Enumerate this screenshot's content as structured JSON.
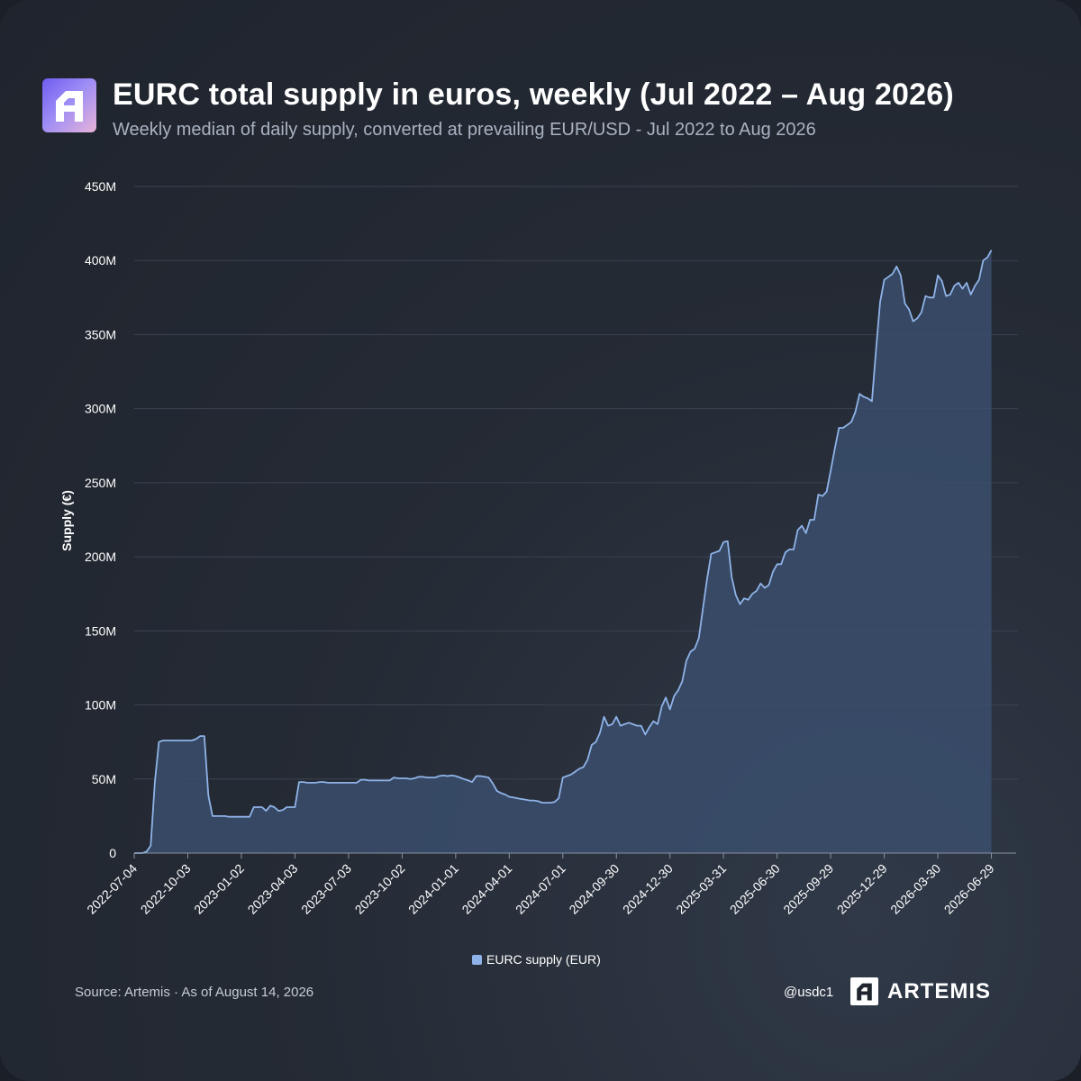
{
  "header": {
    "title": "EURC total supply in euros, weekly (Jul 2022 – Aug 2026)",
    "subtitle": "Weekly median of daily supply, converted at prevailing EUR/USD - Jul 2022 to Aug 2026",
    "logo_icon": "artemis-logo-icon"
  },
  "footer": {
    "source": "Source: Artemis · As of August 14, 2026",
    "handle": "@usdc1",
    "brand": "ARTEMIS",
    "brand_icon": "artemis-logo-icon"
  },
  "colors": {
    "line": "#8fb3e8",
    "area": "#3a4d6c",
    "grid": "#3b4250",
    "logo_gradient": [
      "#6f5cf0",
      "#e7b4d9"
    ]
  },
  "chart_data": {
    "type": "area",
    "title": "EURC total supply in euros, weekly (Jul 2022 – Aug 2026)",
    "subtitle": "Weekly median of daily supply, converted at prevailing EUR/USD - Jul 2022 to Aug 2026",
    "xlabel": "",
    "ylabel": "Supply (€)",
    "x_range": [
      "2022-07-04",
      "2026-08-10"
    ],
    "ylim": [
      0,
      450000000
    ],
    "y_ticks": [
      0,
      50000000,
      100000000,
      150000000,
      200000000,
      250000000,
      300000000,
      350000000,
      400000000,
      450000000
    ],
    "y_tick_labels": [
      "0",
      "50M",
      "100M",
      "150M",
      "200M",
      "250M",
      "300M",
      "350M",
      "400M",
      "450M"
    ],
    "x_ticks": [
      "2022-07-04",
      "2022-10-03",
      "2023-01-02",
      "2023-04-03",
      "2023-07-03",
      "2023-10-02",
      "2024-01-01",
      "2024-04-01",
      "2024-07-01",
      "2024-09-30",
      "2024-12-30",
      "2025-03-31",
      "2025-06-30",
      "2025-09-29",
      "2025-12-29",
      "2026-03-30",
      "2026-06-29"
    ],
    "grid": "horizontal",
    "legend": "bottom-center",
    "series": [
      {
        "name": "EURC supply (EUR)",
        "color": "#8fb3e8",
        "points": [
          [
            "2022-07-04",
            0
          ],
          [
            "2022-07-11",
            0
          ],
          [
            "2022-07-18",
            0
          ],
          [
            "2022-07-25",
            1000000
          ],
          [
            "2022-08-01",
            5000000
          ],
          [
            "2022-08-08",
            48000000
          ],
          [
            "2022-08-15",
            75000000
          ],
          [
            "2022-08-22",
            76000000
          ],
          [
            "2022-08-29",
            76000000
          ],
          [
            "2022-09-05",
            76000000
          ],
          [
            "2022-09-12",
            76000000
          ],
          [
            "2022-09-19",
            76000000
          ],
          [
            "2022-09-26",
            76000000
          ],
          [
            "2022-10-03",
            76000000
          ],
          [
            "2022-10-10",
            76000000
          ],
          [
            "2022-10-17",
            77000000
          ],
          [
            "2022-10-24",
            79000000
          ],
          [
            "2022-10-31",
            79000000
          ],
          [
            "2022-11-07",
            39000000
          ],
          [
            "2022-11-14",
            25000000
          ],
          [
            "2022-11-21",
            25000000
          ],
          [
            "2022-11-28",
            25000000
          ],
          [
            "2022-12-05",
            25000000
          ],
          [
            "2022-12-12",
            24500000
          ],
          [
            "2022-12-19",
            24500000
          ],
          [
            "2022-12-26",
            24500000
          ],
          [
            "2023-01-02",
            24500000
          ],
          [
            "2023-01-09",
            24500000
          ],
          [
            "2023-01-16",
            24500000
          ],
          [
            "2023-01-23",
            31000000
          ],
          [
            "2023-01-30",
            31000000
          ],
          [
            "2023-02-06",
            31000000
          ],
          [
            "2023-02-13",
            28500000
          ],
          [
            "2023-02-20",
            32000000
          ],
          [
            "2023-02-27",
            31000000
          ],
          [
            "2023-03-06",
            28500000
          ],
          [
            "2023-03-13",
            29000000
          ],
          [
            "2023-03-20",
            31000000
          ],
          [
            "2023-03-27",
            31000000
          ],
          [
            "2023-04-03",
            31000000
          ],
          [
            "2023-04-10",
            48000000
          ],
          [
            "2023-04-17",
            48000000
          ],
          [
            "2023-04-24",
            47500000
          ],
          [
            "2023-05-01",
            47500000
          ],
          [
            "2023-05-08",
            47500000
          ],
          [
            "2023-05-15",
            48000000
          ],
          [
            "2023-05-22",
            48000000
          ],
          [
            "2023-05-29",
            47500000
          ],
          [
            "2023-06-05",
            47500000
          ],
          [
            "2023-06-12",
            47500000
          ],
          [
            "2023-06-19",
            47500000
          ],
          [
            "2023-06-26",
            47500000
          ],
          [
            "2023-07-03",
            47500000
          ],
          [
            "2023-07-10",
            47500000
          ],
          [
            "2023-07-17",
            47500000
          ],
          [
            "2023-07-24",
            49500000
          ],
          [
            "2023-07-31",
            49500000
          ],
          [
            "2023-08-07",
            49000000
          ],
          [
            "2023-08-14",
            49000000
          ],
          [
            "2023-08-21",
            49000000
          ],
          [
            "2023-08-28",
            49000000
          ],
          [
            "2023-09-04",
            49000000
          ],
          [
            "2023-09-11",
            49000000
          ],
          [
            "2023-09-18",
            51000000
          ],
          [
            "2023-09-25",
            50500000
          ],
          [
            "2023-10-02",
            50500000
          ],
          [
            "2023-10-09",
            50500000
          ],
          [
            "2023-10-16",
            50000000
          ],
          [
            "2023-10-23",
            50500000
          ],
          [
            "2023-10-30",
            51500000
          ],
          [
            "2023-11-06",
            51500000
          ],
          [
            "2023-11-13",
            51000000
          ],
          [
            "2023-11-20",
            51000000
          ],
          [
            "2023-11-27",
            51000000
          ],
          [
            "2023-12-04",
            52000000
          ],
          [
            "2023-12-11",
            52500000
          ],
          [
            "2023-12-18",
            52000000
          ],
          [
            "2023-12-25",
            52500000
          ],
          [
            "2024-01-01",
            52000000
          ],
          [
            "2024-01-08",
            51000000
          ],
          [
            "2024-01-15",
            50000000
          ],
          [
            "2024-01-22",
            49000000
          ],
          [
            "2024-01-29",
            48000000
          ],
          [
            "2024-02-05",
            52000000
          ],
          [
            "2024-02-12",
            52000000
          ],
          [
            "2024-02-19",
            51500000
          ],
          [
            "2024-02-26",
            51000000
          ],
          [
            "2024-03-04",
            47000000
          ],
          [
            "2024-03-11",
            42000000
          ],
          [
            "2024-03-18",
            40500000
          ],
          [
            "2024-03-25",
            39500000
          ],
          [
            "2024-04-01",
            38000000
          ],
          [
            "2024-04-08",
            37500000
          ],
          [
            "2024-04-15",
            37000000
          ],
          [
            "2024-04-22",
            36500000
          ],
          [
            "2024-04-29",
            36000000
          ],
          [
            "2024-05-06",
            35500000
          ],
          [
            "2024-05-13",
            35500000
          ],
          [
            "2024-05-20",
            35000000
          ],
          [
            "2024-05-27",
            34000000
          ],
          [
            "2024-06-03",
            34000000
          ],
          [
            "2024-06-10",
            34000000
          ],
          [
            "2024-06-17",
            34500000
          ],
          [
            "2024-06-24",
            37000000
          ],
          [
            "2024-07-01",
            51000000
          ],
          [
            "2024-07-08",
            52000000
          ],
          [
            "2024-07-15",
            53000000
          ],
          [
            "2024-07-22",
            55000000
          ],
          [
            "2024-07-29",
            57000000
          ],
          [
            "2024-08-05",
            58000000
          ],
          [
            "2024-08-12",
            63000000
          ],
          [
            "2024-08-19",
            73000000
          ],
          [
            "2024-08-26",
            75000000
          ],
          [
            "2024-09-02",
            81000000
          ],
          [
            "2024-09-09",
            92000000
          ],
          [
            "2024-09-16",
            86000000
          ],
          [
            "2024-09-23",
            87000000
          ],
          [
            "2024-09-30",
            92000000
          ],
          [
            "2024-10-07",
            86000000
          ],
          [
            "2024-10-14",
            87000000
          ],
          [
            "2024-10-21",
            88000000
          ],
          [
            "2024-10-28",
            87000000
          ],
          [
            "2024-11-04",
            86000000
          ],
          [
            "2024-11-11",
            86000000
          ],
          [
            "2024-11-18",
            80000000
          ],
          [
            "2024-11-25",
            85000000
          ],
          [
            "2024-12-02",
            89000000
          ],
          [
            "2024-12-09",
            87000000
          ],
          [
            "2024-12-16",
            99000000
          ],
          [
            "2024-12-23",
            105000000
          ],
          [
            "2024-12-30",
            97000000
          ],
          [
            "2025-01-06",
            106000000
          ],
          [
            "2025-01-13",
            110000000
          ],
          [
            "2025-01-20",
            116000000
          ],
          [
            "2025-01-27",
            130000000
          ],
          [
            "2025-02-03",
            136000000
          ],
          [
            "2025-02-10",
            138000000
          ],
          [
            "2025-02-17",
            145000000
          ],
          [
            "2025-02-24",
            165000000
          ],
          [
            "2025-03-03",
            185000000
          ],
          [
            "2025-03-10",
            202000000
          ],
          [
            "2025-03-17",
            203000000
          ],
          [
            "2025-03-24",
            204000000
          ],
          [
            "2025-03-31",
            210000000
          ],
          [
            "2025-04-07",
            210500000
          ],
          [
            "2025-04-14",
            186000000
          ],
          [
            "2025-04-21",
            174000000
          ],
          [
            "2025-04-28",
            168000000
          ],
          [
            "2025-05-05",
            172000000
          ],
          [
            "2025-05-12",
            171000000
          ],
          [
            "2025-05-19",
            175000000
          ],
          [
            "2025-05-26",
            177000000
          ],
          [
            "2025-06-02",
            182000000
          ],
          [
            "2025-06-09",
            179000000
          ],
          [
            "2025-06-16",
            181000000
          ],
          [
            "2025-06-23",
            190000000
          ],
          [
            "2025-06-30",
            195000000
          ],
          [
            "2025-07-07",
            195000000
          ],
          [
            "2025-07-14",
            203000000
          ],
          [
            "2025-07-21",
            205000000
          ],
          [
            "2025-07-28",
            205000000
          ],
          [
            "2025-08-04",
            218000000
          ],
          [
            "2025-08-11",
            221000000
          ],
          [
            "2025-08-18",
            216000000
          ],
          [
            "2025-08-25",
            225000000
          ],
          [
            "2025-09-01",
            225000000
          ],
          [
            "2025-09-08",
            242000000
          ],
          [
            "2025-09-15",
            241000000
          ],
          [
            "2025-09-22",
            244000000
          ],
          [
            "2025-09-29",
            258000000
          ],
          [
            "2025-10-06",
            273000000
          ],
          [
            "2025-10-13",
            287000000
          ],
          [
            "2025-10-20",
            287000000
          ],
          [
            "2025-10-27",
            289000000
          ],
          [
            "2025-11-03",
            291000000
          ],
          [
            "2025-11-10",
            298000000
          ],
          [
            "2025-11-17",
            310000000
          ],
          [
            "2025-11-24",
            308000000
          ],
          [
            "2025-12-01",
            307000000
          ],
          [
            "2025-12-08",
            305000000
          ],
          [
            "2025-12-15",
            340000000
          ],
          [
            "2025-12-22",
            372000000
          ],
          [
            "2025-12-29",
            387000000
          ],
          [
            "2026-01-05",
            389000000
          ],
          [
            "2026-01-12",
            391000000
          ],
          [
            "2026-01-19",
            396000000
          ],
          [
            "2026-01-26",
            390000000
          ],
          [
            "2026-02-02",
            371000000
          ],
          [
            "2026-02-09",
            367000000
          ],
          [
            "2026-02-16",
            359000000
          ],
          [
            "2026-02-23",
            361000000
          ],
          [
            "2026-03-02",
            365000000
          ],
          [
            "2026-03-09",
            376000000
          ],
          [
            "2026-03-16",
            375000000
          ],
          [
            "2026-03-23",
            375000000
          ],
          [
            "2026-03-30",
            390000000
          ],
          [
            "2026-04-06",
            386000000
          ],
          [
            "2026-04-13",
            376000000
          ],
          [
            "2026-04-20",
            377000000
          ],
          [
            "2026-04-27",
            383000000
          ],
          [
            "2026-05-04",
            385000000
          ],
          [
            "2026-05-11",
            381000000
          ],
          [
            "2026-05-18",
            385000000
          ],
          [
            "2026-05-25",
            377000000
          ],
          [
            "2026-06-01",
            383000000
          ],
          [
            "2026-06-08",
            387000000
          ],
          [
            "2026-06-15",
            400000000
          ],
          [
            "2026-06-22",
            402000000
          ],
          [
            "2026-06-29",
            407000000
          ]
        ]
      }
    ]
  }
}
